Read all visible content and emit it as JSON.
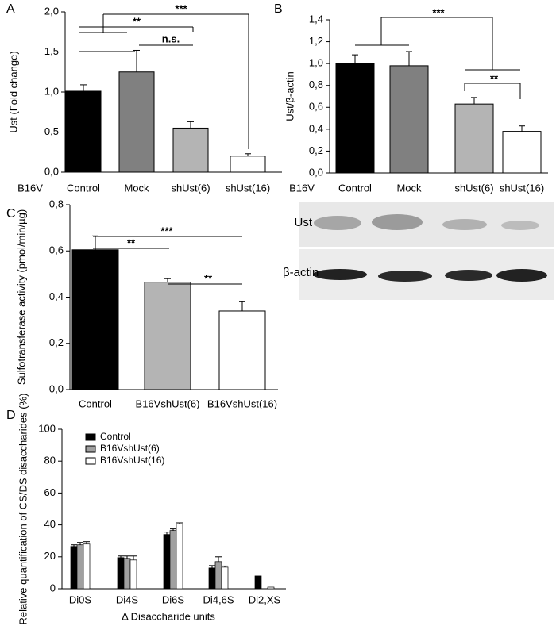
{
  "chart_data": [
    {
      "type": "bar",
      "panel": "A",
      "group_label": "B16V",
      "ylabel": "Ust (Fold change)",
      "categories": [
        "Control",
        "Mock",
        "shUst(6)",
        "shUst(16)"
      ],
      "values": [
        1.01,
        1.25,
        0.55,
        0.2
      ],
      "errors": [
        0.08,
        0.27,
        0.08,
        0.03
      ],
      "colors": [
        "#000000",
        "#808080",
        "#b4b4b4",
        "#ffffff"
      ],
      "ylim": [
        0,
        2
      ],
      "yticks": [
        {
          "value": 0,
          "label": "0,0"
        },
        {
          "value": 0.5,
          "label": "0,5"
        },
        {
          "value": 1,
          "label": "1,0"
        },
        {
          "value": 1.5,
          "label": "1,5"
        },
        {
          "value": 2,
          "label": "2,0"
        }
      ],
      "annotations": [
        "***",
        "**",
        "n.s."
      ]
    },
    {
      "type": "bar",
      "panel": "B",
      "group_label": "B16V",
      "ylabel": "Ust/β-actin",
      "categories": [
        "Control",
        "Mock",
        "shUst(6)",
        "shUst(16)"
      ],
      "values": [
        1.0,
        0.98,
        0.63,
        0.38
      ],
      "errors": [
        0.08,
        0.13,
        0.06,
        0.05
      ],
      "colors": [
        "#000000",
        "#808080",
        "#b4b4b4",
        "#ffffff"
      ],
      "ylim": [
        0,
        1.4
      ],
      "yticks": [
        {
          "value": 0,
          "label": "0,0"
        },
        {
          "value": 0.2,
          "label": "0,2"
        },
        {
          "value": 0.4,
          "label": "0,4"
        },
        {
          "value": 0.6,
          "label": "0,6"
        },
        {
          "value": 0.8,
          "label": "0,8"
        },
        {
          "value": 1,
          "label": "1,0"
        },
        {
          "value": 1.2,
          "label": "1,2"
        },
        {
          "value": 1.4,
          "label": "1,4"
        }
      ],
      "annotations": [
        "***",
        "**"
      ]
    },
    {
      "type": "bar",
      "panel": "C",
      "ylabel": "Sulfotransferase activity (pmol/min/µg)",
      "categories": [
        "Control",
        "B16VshUst(6)",
        "B16VshUst(16)"
      ],
      "values": [
        0.605,
        0.465,
        0.34
      ],
      "errors": [
        0.06,
        0.015,
        0.04
      ],
      "colors": [
        "#000000",
        "#b4b4b4",
        "#ffffff"
      ],
      "ylim": [
        0,
        0.8
      ],
      "yticks": [
        {
          "value": 0,
          "label": "0,0"
        },
        {
          "value": 0.2,
          "label": "0,2"
        },
        {
          "value": 0.4,
          "label": "0,4"
        },
        {
          "value": 0.6,
          "label": "0,6"
        },
        {
          "value": 0.8,
          "label": "0,8"
        }
      ],
      "annotations": [
        "***",
        "**",
        "**"
      ]
    },
    {
      "type": "grouped_bar",
      "panel": "D",
      "ylabel": "Relative quantification of CS/DS disaccharides (%)",
      "xlabel": "Δ Disaccharide units",
      "categories": [
        "Di0S",
        "Di4S",
        "Di6S",
        "Di4,6S",
        "Di2,XS"
      ],
      "series": [
        {
          "name": "Control",
          "color": "#000000",
          "values": [
            26.5,
            19.5,
            34,
            13,
            8
          ],
          "errors": [
            1,
            1,
            1.5,
            1.5,
            null
          ]
        },
        {
          "name": "B16VshUst(6)",
          "color": "#a0a0a0",
          "values": [
            27.5,
            19,
            36.5,
            17,
            null
          ],
          "errors": [
            1.5,
            1.5,
            1,
            3,
            null
          ]
        },
        {
          "name": "B16VshUst(16)",
          "color": "#ffffff",
          "values": [
            28,
            18,
            40.5,
            13.5,
            1
          ],
          "errors": [
            1.5,
            2.5,
            0.8,
            0.7,
            null
          ]
        }
      ],
      "ylim": [
        0,
        100
      ],
      "yticks": [
        0,
        20,
        40,
        60,
        80,
        100
      ],
      "legend": "upper left"
    }
  ],
  "blot": {
    "labels": [
      "Ust",
      "β-actin"
    ]
  }
}
